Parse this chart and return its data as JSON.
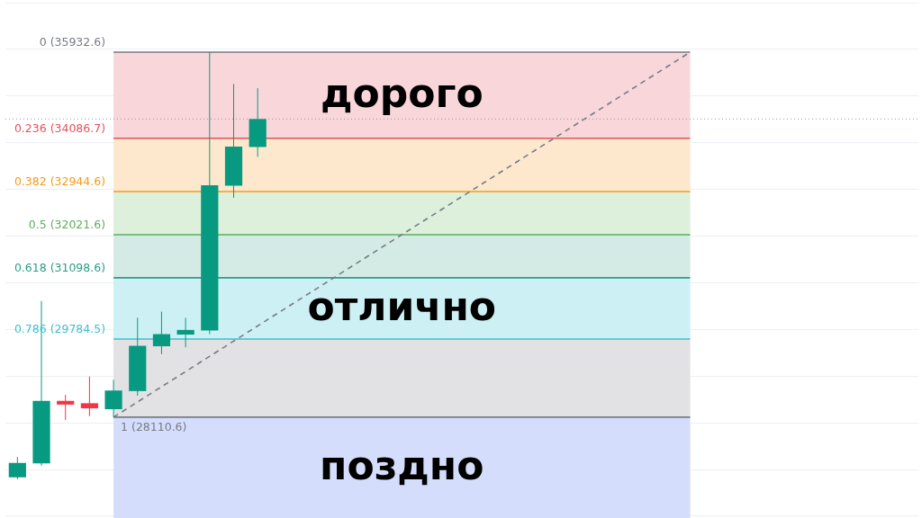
{
  "chart_data": {
    "type": "candlestick",
    "categories": [
      null,
      null,
      null,
      null,
      null,
      null,
      null,
      null,
      null,
      null,
      null,
      null,
      null,
      null,
      null,
      null,
      null,
      null,
      null,
      null,
      null,
      null,
      null,
      null,
      null,
      null,
      null,
      null,
      null,
      null,
      null,
      null,
      null,
      null,
      null,
      null,
      null,
      null
    ],
    "ohlc": [
      [
        26820,
        27260,
        26780,
        27130
      ],
      [
        27120,
        30600,
        27070,
        28460
      ],
      [
        28460,
        28590,
        28050,
        28380
      ],
      [
        28410,
        28980,
        28130,
        28300
      ],
      [
        28280,
        28910,
        28110.6,
        28680
      ],
      [
        28670,
        30240,
        28570,
        29640
      ],
      [
        29630,
        30370,
        29460,
        29890
      ],
      [
        29880,
        30240,
        29610,
        29980
      ],
      [
        29970,
        35932.6,
        29890,
        33080
      ],
      [
        33070,
        35250,
        32810,
        33910
      ],
      [
        33900,
        35160,
        33690,
        34500
      ],
      null,
      null,
      null,
      null,
      null,
      null,
      null,
      null,
      null,
      null,
      null,
      null,
      null,
      null,
      null,
      null,
      null,
      null,
      null,
      null,
      null,
      null,
      null,
      null,
      null,
      null,
      null
    ],
    "colors": [
      "#089981",
      "#089981",
      "#f23645",
      "#f23645",
      "#089981",
      "#089981",
      "#089981",
      "#089981",
      "#089981",
      "#089981",
      "#089981",
      null,
      null,
      null,
      null,
      null,
      null,
      null,
      null,
      null,
      null,
      null,
      null,
      null,
      null,
      null,
      null,
      null,
      null,
      null,
      null,
      null,
      null,
      null,
      null,
      null,
      null,
      null
    ],
    "series": [
      {
        "type": "line",
        "color": "#787b86",
        "line_style": "dashed",
        "values": [
          null,
          null,
          null,
          null,
          28110.6,
          null,
          null,
          null,
          null,
          null,
          null,
          null,
          null,
          null,
          null,
          null,
          null,
          null,
          null,
          null,
          null,
          null,
          null,
          null,
          null,
          null,
          null,
          null,
          35932.6,
          null,
          null,
          null,
          null,
          null,
          null,
          null,
          null,
          null
        ]
      }
    ],
    "ylim": [
      25950,
      37050
    ],
    "yticks": [
      26000,
      27000,
      28000,
      29000,
      30000,
      31000,
      32000,
      33000,
      34000,
      35000,
      36000,
      37000
    ],
    "tick_labels": false,
    "grid": "y",
    "bands": [
      {
        "axis": "y",
        "from": 34086.7,
        "to": 35932.6,
        "color": "#f9d6da",
        "label": "дорого"
      },
      {
        "axis": "y",
        "from": 32944.6,
        "to": 34086.7,
        "color": "#fde8cd"
      },
      {
        "axis": "y",
        "from": 32021.6,
        "to": 32944.6,
        "color": "#ddf0dc"
      },
      {
        "axis": "y",
        "from": 31098.6,
        "to": 32021.6,
        "color": "#d3ebe4"
      },
      {
        "axis": "y",
        "from": 29784.5,
        "to": 31098.6,
        "color": "#ccf0f3",
        "label": "отлично"
      },
      {
        "axis": "y",
        "from": 28110.6,
        "to": 29784.5,
        "color": "#e2e2e4"
      },
      {
        "axis": "y",
        "from": 25950,
        "to": 28110.6,
        "color": "#d4defc",
        "label": "поздно"
      }
    ],
    "ref_lines": [
      {
        "axis": "y",
        "value": 35932.6,
        "label": "0 (35932.6)",
        "color": "#787b86"
      },
      {
        "axis": "y",
        "value": 34086.7,
        "label": "0.236 (34086.7)",
        "color": "#e2535e"
      },
      {
        "axis": "y",
        "value": 32944.6,
        "label": "0.382 (32944.6)",
        "color": "#f59b1c"
      },
      {
        "axis": "y",
        "value": 32021.6,
        "label": "0.5 (32021.6)",
        "color": "#5fae5c"
      },
      {
        "axis": "y",
        "value": 31098.6,
        "label": "0.618 (31098.6)",
        "color": "#2a9d86"
      },
      {
        "axis": "y",
        "value": 29784.5,
        "label": "0.786 (29784.5)",
        "color": "#3fbfd0"
      },
      {
        "axis": "y",
        "value": 28110.6,
        "label": "1 (28110.6)",
        "color": "#787b86"
      },
      {
        "axis": "y",
        "value": 34500,
        "color": "#9598a1",
        "line_style": "dotted"
      }
    ]
  }
}
